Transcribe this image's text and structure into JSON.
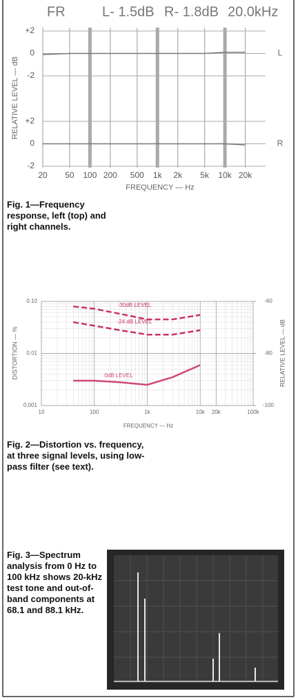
{
  "chart_data": [
    {
      "type": "line",
      "header": [
        "FR",
        "L- 1.5dB",
        "R- 1.8dB",
        "20.0kHz"
      ],
      "x_label": "FREQUENCY — Hz",
      "y_label": "RELATIVE LEVEL — dB",
      "log_x": true,
      "grid": true,
      "color": "#777777",
      "x": [
        20,
        50,
        100,
        200,
        500,
        1000,
        2000,
        5000,
        10000,
        20000
      ],
      "xlim": [
        20,
        40000
      ],
      "xticks": [
        20,
        50,
        100,
        200,
        500,
        {
          "value": 1000,
          "label": "1k"
        },
        {
          "value": 2000,
          "label": "2k"
        },
        {
          "value": 5000,
          "label": "5k"
        },
        {
          "value": 10000,
          "label": "10k"
        },
        {
          "value": 20000,
          "label": "20k"
        }
      ],
      "series": [
        {
          "name": "L",
          "values": [
            -0.1,
            0,
            0,
            0,
            0,
            0,
            0,
            0,
            0.1,
            0.1
          ],
          "ylim": [
            -2,
            2
          ],
          "yticks": [
            {
              "value": 2,
              "label": "+2"
            },
            0,
            -2
          ]
        },
        {
          "name": "R",
          "values": [
            0,
            0,
            0,
            0,
            0,
            0,
            0,
            0,
            0,
            -0.1
          ],
          "ylim": [
            -2,
            2
          ],
          "yticks": [
            {
              "value": 2,
              "label": "+2"
            },
            0,
            -2
          ]
        }
      ]
    },
    {
      "type": "line",
      "x_label": "FREQUENCY — Hz",
      "y_label": "DISTORTION — %",
      "y2_label": "RELATIVE LEVEL — dB",
      "log_x": true,
      "log_y": true,
      "grid": true,
      "x": [
        40,
        100,
        300,
        1000,
        3000,
        10000
      ],
      "xlim": [
        10,
        100000
      ],
      "xticks": [
        10,
        100,
        {
          "value": 1000,
          "label": "1k"
        },
        {
          "value": 10000,
          "label": "10k"
        },
        {
          "value": 20000,
          "label": "20k"
        },
        {
          "value": 100000,
          "label": "100k"
        }
      ],
      "ylim": [
        0.001,
        0.1
      ],
      "yticks": [
        0.001,
        0.01,
        {
          "value": 0.1,
          "label": "0.10"
        }
      ],
      "y2lim": [
        -100,
        -60
      ],
      "y2ticks": [
        -60,
        -80,
        -100
      ],
      "series": [
        {
          "name": "-30dB LEVEL",
          "color": "#c9306a",
          "style": "dashed",
          "values": [
            0.08,
            0.072,
            0.058,
            0.045,
            0.045,
            0.055
          ]
        },
        {
          "name": "-24 dB LEVEL",
          "color": "#c9306a",
          "style": "dashed",
          "values": [
            0.04,
            0.034,
            0.028,
            0.023,
            0.023,
            0.028
          ]
        },
        {
          "name": "0dB LEVEL",
          "color": "#d0457a",
          "style": "solid",
          "values": [
            0.003,
            0.003,
            0.0028,
            0.0025,
            0.0035,
            0.006
          ]
        }
      ]
    }
  ],
  "captions": [
    "Fig. 1—Frequency response, left (top) and right channels.",
    "Fig. 2—Distortion vs. frequency, at three signal levels, using low-pass filter (see text).",
    "Fig. 3—Spectrum analysis from 0 Hz to 100 kHz shows 20-kHz test tone and out-of-band components at 68.1 and 88.1 kHz."
  ]
}
